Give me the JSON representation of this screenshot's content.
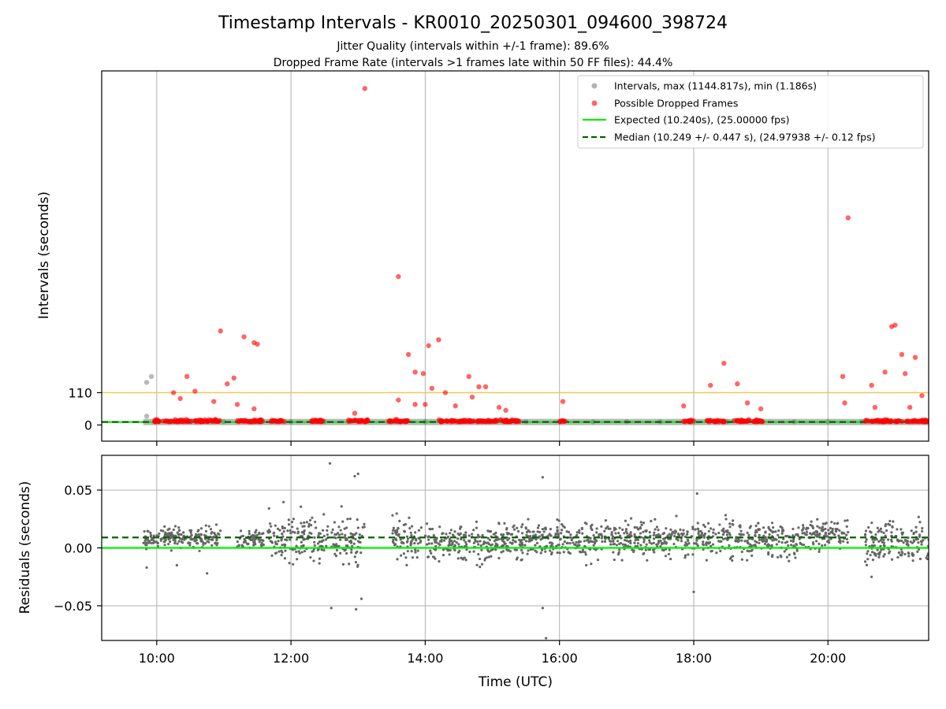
{
  "chart_data": {
    "title": "Timestamp Intervals - KR0010_20250301_094600_398724",
    "subtitle_lines": [
      "Jitter Quality (intervals within +/-1 frame): 89.6%",
      "Dropped Frame Rate (intervals >1 frames late within 50 FF files): 44.4%"
    ],
    "xlabel": "Time (UTC)",
    "x_tick_labels": [
      "10:00",
      "12:00",
      "14:00",
      "16:00",
      "18:00",
      "20:00"
    ],
    "x_tick_hours": [
      10,
      12,
      14,
      16,
      18,
      20
    ],
    "xlim_hours": [
      9.18,
      21.5
    ],
    "colors": {
      "intervals": "#808080",
      "dropped": "#ff0000",
      "expected": "#00ee00",
      "median": "#006400",
      "threshold": "#f5c542",
      "residuals": "#666666"
    },
    "panels": [
      {
        "type": "scatter",
        "ylabel": "Intervals (seconds)",
        "y_tick_labels": [
          "0",
          "110"
        ],
        "y_tick_values": [
          0,
          110
        ],
        "ylim": [
          -55,
          1205
        ],
        "threshold_value": 110,
        "expected_value": 10.24,
        "median_value": 10.249,
        "legend_position": "top-right",
        "legend": [
          "Intervals, max (1144.817s), min (1.186s)",
          "Possible Dropped Frames",
          "Expected (10.240s), (25.00000 fps)",
          "Median (10.249 +/- 0.447 s), (24.97938 +/- 0.12 fps)"
        ],
        "intervals_points": [
          [
            9.85,
            145
          ],
          [
            9.92,
            165
          ],
          [
            9.85,
            30
          ],
          [
            10.0,
            11
          ],
          [
            10.5,
            11
          ],
          [
            11.0,
            11
          ],
          [
            11.5,
            11
          ],
          [
            12.0,
            11
          ],
          [
            12.5,
            11
          ],
          [
            13.0,
            11
          ],
          [
            13.5,
            11
          ],
          [
            14.0,
            11
          ],
          [
            14.5,
            11
          ],
          [
            15.0,
            11
          ],
          [
            15.5,
            11
          ],
          [
            16.0,
            11
          ],
          [
            16.5,
            11
          ],
          [
            17.0,
            11
          ],
          [
            17.5,
            11
          ],
          [
            18.0,
            11
          ],
          [
            18.5,
            11
          ],
          [
            19.0,
            11
          ],
          [
            19.5,
            11
          ],
          [
            20.0,
            11
          ],
          [
            20.5,
            11
          ],
          [
            21.0,
            11
          ],
          [
            21.4,
            11
          ]
        ],
        "dropped_points": [
          [
            13.1,
            1145
          ],
          [
            20.3,
            705
          ],
          [
            13.6,
            505
          ],
          [
            10.95,
            320
          ],
          [
            11.3,
            300
          ],
          [
            11.45,
            280
          ],
          [
            11.5,
            275
          ],
          [
            13.75,
            240
          ],
          [
            14.05,
            270
          ],
          [
            14.2,
            290
          ],
          [
            13.85,
            180
          ],
          [
            13.97,
            175
          ],
          [
            10.45,
            165
          ],
          [
            11.15,
            160
          ],
          [
            11.05,
            140
          ],
          [
            14.65,
            165
          ],
          [
            14.8,
            130
          ],
          [
            14.9,
            130
          ],
          [
            14.1,
            125
          ],
          [
            14.3,
            110
          ],
          [
            14.7,
            95
          ],
          [
            10.25,
            110
          ],
          [
            10.35,
            90
          ],
          [
            10.57,
            115
          ],
          [
            18.25,
            135
          ],
          [
            18.45,
            210
          ],
          [
            18.65,
            140
          ],
          [
            20.22,
            165
          ],
          [
            20.65,
            135
          ],
          [
            20.85,
            180
          ],
          [
            20.95,
            335
          ],
          [
            21.0,
            340
          ],
          [
            21.1,
            240
          ],
          [
            21.15,
            175
          ],
          [
            21.3,
            230
          ],
          [
            21.4,
            100
          ],
          [
            13.6,
            85
          ],
          [
            13.85,
            70
          ],
          [
            14.0,
            70
          ],
          [
            14.45,
            65
          ],
          [
            15.1,
            60
          ],
          [
            15.2,
            50
          ],
          [
            16.05,
            80
          ],
          [
            17.85,
            65
          ],
          [
            18.8,
            75
          ],
          [
            19.0,
            55
          ],
          [
            20.25,
            75
          ],
          [
            20.7,
            60
          ],
          [
            21.22,
            60
          ],
          [
            12.95,
            40
          ],
          [
            10.85,
            80
          ],
          [
            11.45,
            55
          ],
          [
            11.2,
            70
          ]
        ],
        "dropped_band_segments": [
          [
            9.97,
            10.95
          ],
          [
            11.2,
            11.6
          ],
          [
            11.7,
            11.9
          ],
          [
            12.3,
            12.5
          ],
          [
            12.85,
            13.15
          ],
          [
            13.45,
            13.75
          ],
          [
            14.2,
            15.4
          ],
          [
            16.0,
            16.1
          ],
          [
            17.85,
            18.0
          ],
          [
            18.2,
            18.5
          ],
          [
            18.6,
            19.05
          ],
          [
            20.55,
            20.95
          ],
          [
            21.0,
            21.1
          ],
          [
            21.15,
            21.5
          ]
        ]
      },
      {
        "type": "scatter",
        "ylabel": "Residuals (seconds)",
        "y_tick_labels": [
          "0.05",
          "0.00",
          "−0.05"
        ],
        "y_tick_values": [
          0.05,
          0.0,
          -0.05
        ],
        "ylim": [
          -0.08,
          0.08
        ],
        "expected_value": 0.0,
        "median_value": 0.009,
        "residual_segments": [
          [
            9.8,
            10.95,
            0.009,
            0.006
          ],
          [
            11.2,
            11.6,
            0.007,
            0.006
          ],
          [
            11.65,
            12.55,
            0.008,
            0.014
          ],
          [
            12.6,
            13.1,
            0.006,
            0.014
          ],
          [
            13.5,
            13.95,
            0.006,
            0.012
          ],
          [
            14.0,
            15.5,
            0.005,
            0.011
          ],
          [
            15.5,
            17.0,
            0.007,
            0.011
          ],
          [
            17.0,
            18.2,
            0.008,
            0.01
          ],
          [
            18.2,
            19.6,
            0.007,
            0.011
          ],
          [
            19.6,
            20.3,
            0.012,
            0.009
          ],
          [
            20.55,
            21.5,
            0.006,
            0.012
          ]
        ],
        "residual_outliers": [
          [
            12.58,
            0.073
          ],
          [
            12.95,
            0.062
          ],
          [
            13.0,
            0.064
          ],
          [
            12.6,
            -0.052
          ],
          [
            12.97,
            -0.053
          ],
          [
            13.05,
            -0.044
          ],
          [
            15.75,
            0.061
          ],
          [
            15.75,
            -0.052
          ],
          [
            15.8,
            -0.078
          ],
          [
            18.0,
            -0.038
          ],
          [
            18.05,
            0.047
          ],
          [
            20.65,
            -0.025
          ],
          [
            10.3,
            -0.015
          ],
          [
            10.75,
            -0.022
          ],
          [
            9.85,
            -0.017
          ]
        ]
      }
    ]
  }
}
